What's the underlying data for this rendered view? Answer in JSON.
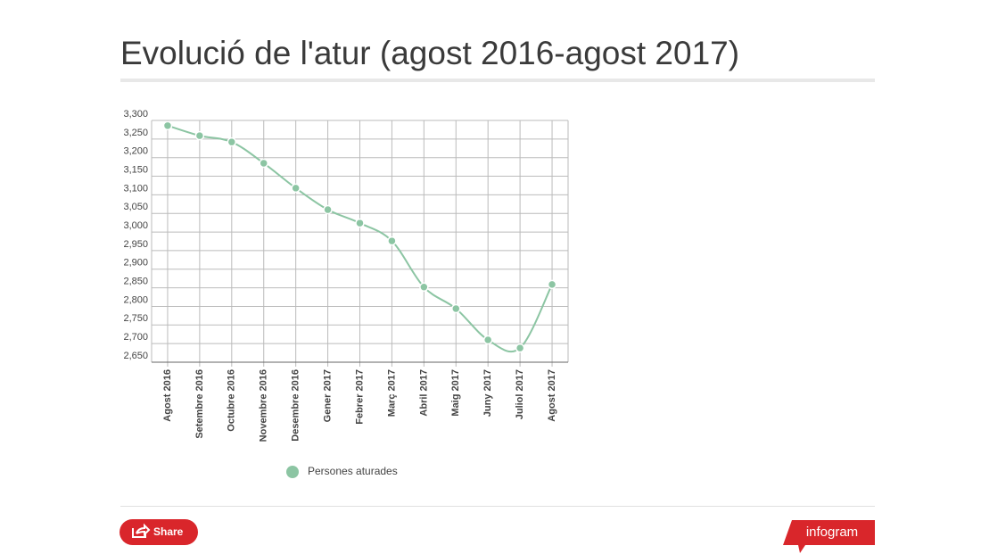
{
  "chart_data": {
    "type": "line",
    "title": "Evolució de l'atur (agost 2016-agost 2017)",
    "categories": [
      "Agost 2016",
      "Setembre 2016",
      "Octubre 2016",
      "Novembre 2016",
      "Desembre 2016",
      "Gener 2017",
      "Febrer 2017",
      "Març 2017",
      "Abril 2017",
      "Maig 2017",
      "Juny 2017",
      "Juliol 2017",
      "Agost 2017"
    ],
    "series": [
      {
        "name": "Persones aturades",
        "color": "#8cc5a3",
        "values": [
          3286,
          3259,
          3242,
          3185,
          3118,
          3060,
          3024,
          2976,
          2852,
          2794,
          2710,
          2688,
          2859
        ]
      }
    ],
    "ylim": [
      2650,
      3300
    ],
    "yticks": [
      {
        "value": 2650,
        "label": "2,650"
      },
      {
        "value": 2700,
        "label": "2,700"
      },
      {
        "value": 2750,
        "label": "2,750"
      },
      {
        "value": 2800,
        "label": "2,800"
      },
      {
        "value": 2850,
        "label": "2,850"
      },
      {
        "value": 2900,
        "label": "2,900"
      },
      {
        "value": 2950,
        "label": "2,950"
      },
      {
        "value": 3000,
        "label": "3,000"
      },
      {
        "value": 3050,
        "label": "3,050"
      },
      {
        "value": 3100,
        "label": "3,100"
      },
      {
        "value": 3150,
        "label": "3,150"
      },
      {
        "value": 3200,
        "label": "3,200"
      },
      {
        "value": 3250,
        "label": "3,250"
      },
      {
        "value": 3300,
        "label": "3,300"
      }
    ],
    "grid": true,
    "smooth": true
  },
  "footer": {
    "share": "Share",
    "brand": "infogram"
  }
}
